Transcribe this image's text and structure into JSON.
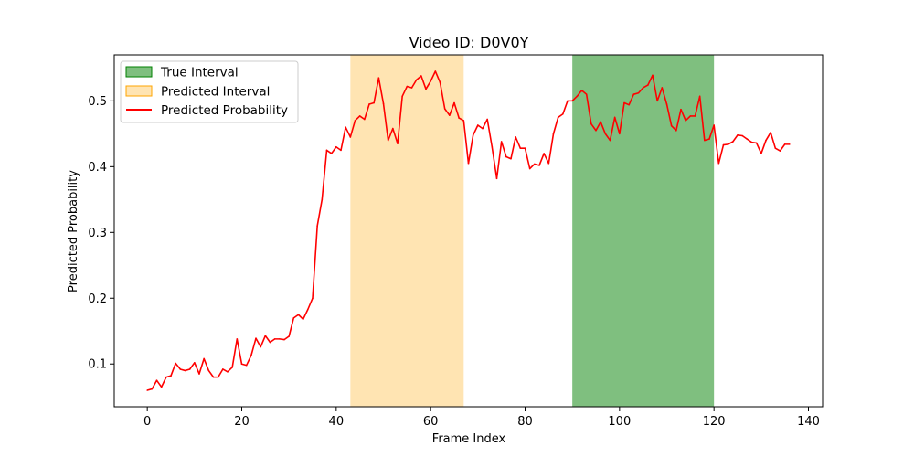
{
  "chart_data": {
    "type": "line",
    "title": "Video ID: D0V0Y",
    "xlabel": "Frame Index",
    "ylabel": "Predicted Probability",
    "xlim": [
      -7,
      143
    ],
    "ylim": [
      0.035,
      0.57
    ],
    "xticks": [
      0,
      20,
      40,
      60,
      80,
      100,
      120,
      140
    ],
    "yticks": [
      0.1,
      0.2,
      0.3,
      0.4,
      0.5
    ],
    "xtick_labels": [
      "0",
      "20",
      "40",
      "60",
      "80",
      "100",
      "120",
      "140"
    ],
    "ytick_labels": [
      "0.1",
      "0.2",
      "0.3",
      "0.4",
      "0.5"
    ],
    "grid": false,
    "legend_position": "upper-left",
    "true_interval": {
      "label": "True Interval",
      "start": 90,
      "end": 120,
      "color": "#008000"
    },
    "predicted_interval": {
      "label": "Predicted Interval",
      "start": 43,
      "end": 67,
      "color": "#ffa500"
    },
    "series": [
      {
        "name": "Predicted Probability",
        "color": "#ff0000",
        "x": [
          0,
          1,
          2,
          3,
          4,
          5,
          6,
          7,
          8,
          9,
          10,
          11,
          12,
          13,
          14,
          15,
          16,
          17,
          18,
          19,
          20,
          21,
          22,
          23,
          24,
          25,
          26,
          27,
          28,
          29,
          30,
          31,
          32,
          33,
          34,
          35,
          36,
          37,
          38,
          39,
          40,
          41,
          42,
          43,
          44,
          45,
          46,
          47,
          48,
          49,
          50,
          51,
          52,
          53,
          54,
          55,
          56,
          57,
          58,
          59,
          60,
          61,
          62,
          63,
          64,
          65,
          66,
          67,
          68,
          69,
          70,
          71,
          72,
          73,
          74,
          75,
          76,
          77,
          78,
          79,
          80,
          81,
          82,
          83,
          84,
          85,
          86,
          87,
          88,
          89,
          90,
          91,
          92,
          93,
          94,
          95,
          96,
          97,
          98,
          99,
          100,
          101,
          102,
          103,
          104,
          105,
          106,
          107,
          108,
          109,
          110,
          111,
          112,
          113,
          114,
          115,
          116,
          117,
          118,
          119,
          120,
          121,
          122,
          123,
          124,
          125,
          126,
          127,
          128,
          129,
          130,
          131,
          132,
          133,
          134,
          135,
          136
        ],
        "values": [
          0.06,
          0.062,
          0.075,
          0.065,
          0.08,
          0.082,
          0.101,
          0.092,
          0.09,
          0.092,
          0.102,
          0.085,
          0.108,
          0.09,
          0.08,
          0.08,
          0.092,
          0.088,
          0.095,
          0.138,
          0.1,
          0.098,
          0.113,
          0.139,
          0.126,
          0.143,
          0.133,
          0.138,
          0.138,
          0.137,
          0.142,
          0.17,
          0.175,
          0.168,
          0.183,
          0.2,
          0.31,
          0.35,
          0.425,
          0.42,
          0.43,
          0.425,
          0.46,
          0.445,
          0.47,
          0.477,
          0.472,
          0.495,
          0.497,
          0.535,
          0.496,
          0.44,
          0.458,
          0.435,
          0.507,
          0.522,
          0.52,
          0.532,
          0.538,
          0.518,
          0.53,
          0.545,
          0.528,
          0.488,
          0.478,
          0.497,
          0.474,
          0.47,
          0.405,
          0.448,
          0.463,
          0.458,
          0.472,
          0.43,
          0.382,
          0.438,
          0.415,
          0.412,
          0.445,
          0.428,
          0.428,
          0.397,
          0.404,
          0.402,
          0.42,
          0.405,
          0.45,
          0.475,
          0.48,
          0.5,
          0.5,
          0.507,
          0.516,
          0.51,
          0.465,
          0.455,
          0.468,
          0.45,
          0.44,
          0.475,
          0.45,
          0.497,
          0.494,
          0.51,
          0.512,
          0.52,
          0.524,
          0.539,
          0.5,
          0.52,
          0.495,
          0.462,
          0.455,
          0.487,
          0.47,
          0.477,
          0.477,
          0.507,
          0.44,
          0.442,
          0.463,
          0.405,
          0.433,
          0.434,
          0.438,
          0.448,
          0.447,
          0.442,
          0.437,
          0.436,
          0.42,
          0.44,
          0.452,
          0.428,
          0.424,
          0.434,
          0.434
        ]
      }
    ]
  }
}
